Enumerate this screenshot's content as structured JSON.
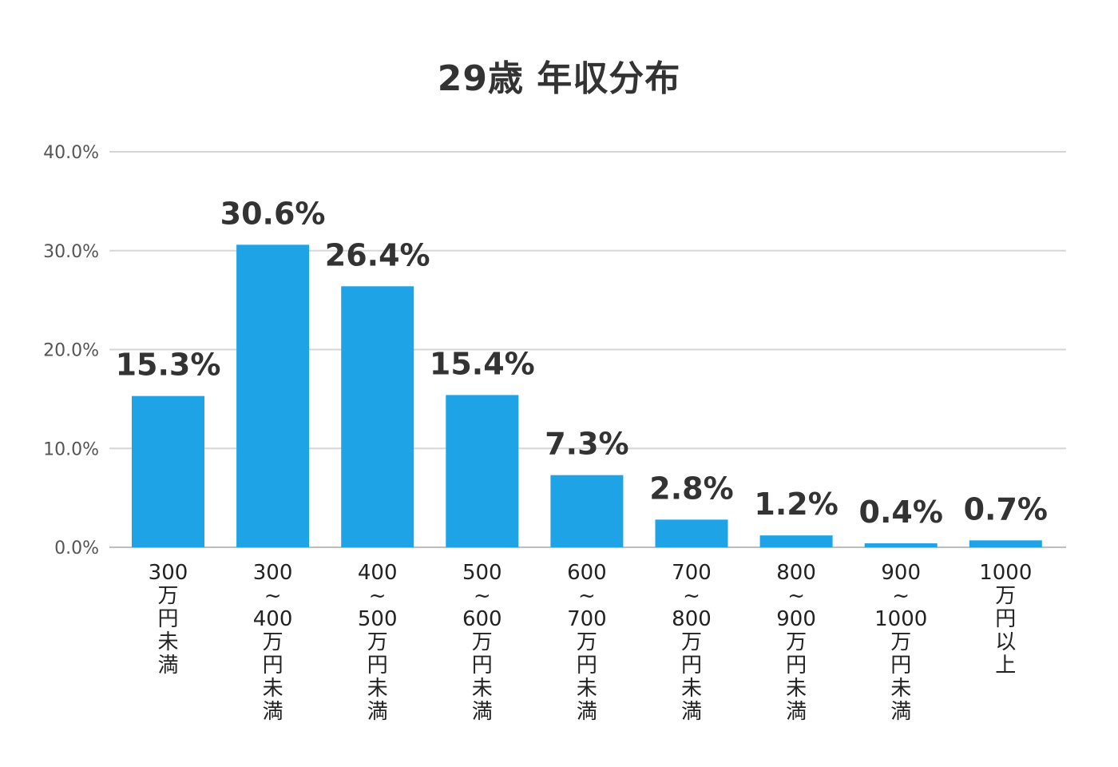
{
  "chart_data": {
    "type": "bar",
    "title": "29歳 年収分布",
    "xlabel": "",
    "ylabel": "",
    "ylim": [
      0,
      40
    ],
    "yticks": [
      "0.0%",
      "10.0%",
      "20.0%",
      "30.0%",
      "40.0%"
    ],
    "grid": true,
    "bar_color": "#1ea4e6",
    "categories": [
      "300万円未満",
      "300~400万円未満",
      "400~500万円未満",
      "500~600万円未満",
      "600~700万円未満",
      "700~800万円未満",
      "800~900万円未満",
      "900~1000万円未満",
      "1000万円以上"
    ],
    "category_lines": [
      [
        "300",
        "万",
        "円",
        "未",
        "満"
      ],
      [
        "300",
        "~",
        "400",
        "万",
        "円",
        "未",
        "満"
      ],
      [
        "400",
        "~",
        "500",
        "万",
        "円",
        "未",
        "満"
      ],
      [
        "500",
        "~",
        "600",
        "万",
        "円",
        "未",
        "満"
      ],
      [
        "600",
        "~",
        "700",
        "万",
        "円",
        "未",
        "満"
      ],
      [
        "700",
        "~",
        "800",
        "万",
        "円",
        "未",
        "満"
      ],
      [
        "800",
        "~",
        "900",
        "万",
        "円",
        "未",
        "満"
      ],
      [
        "900",
        "~",
        "1000",
        "万",
        "円",
        "未",
        "満"
      ],
      [
        "1000",
        "万",
        "円",
        "以",
        "上"
      ]
    ],
    "values": [
      15.3,
      30.6,
      26.4,
      15.4,
      7.3,
      2.8,
      1.2,
      0.4,
      0.7
    ],
    "data_labels": [
      "15.3%",
      "30.6%",
      "26.4%",
      "15.4%",
      "7.3%",
      "2.8%",
      "1.2%",
      "0.4%",
      "0.7%"
    ]
  }
}
